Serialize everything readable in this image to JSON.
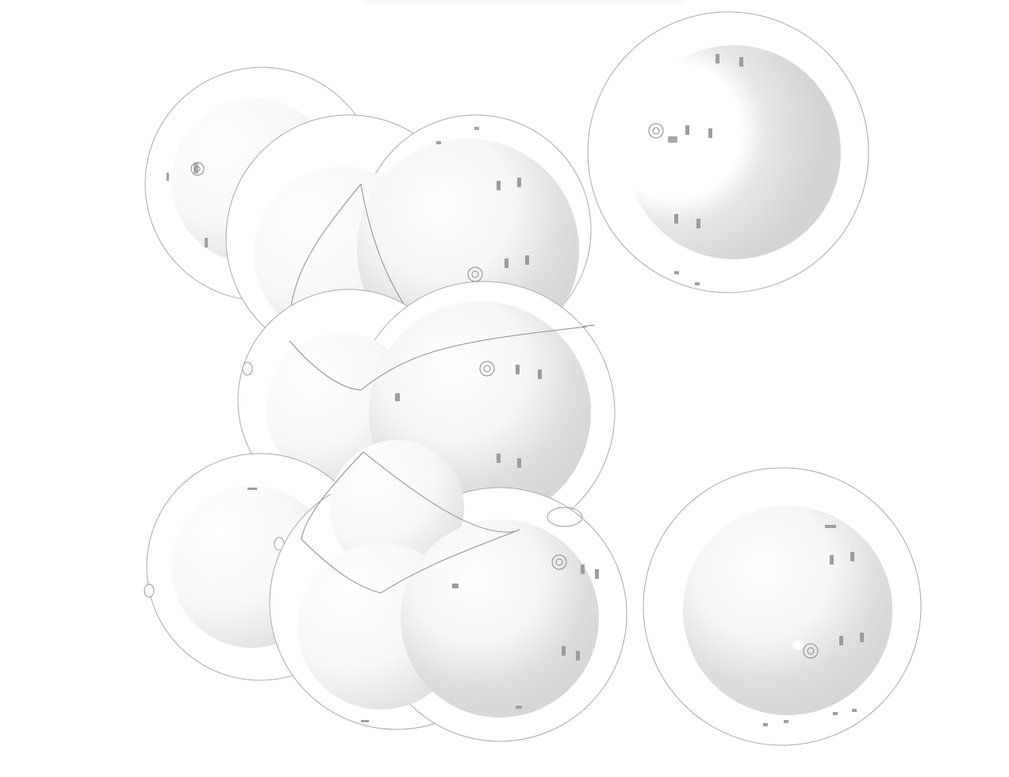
{
  "scene": {
    "description_visible_text": "",
    "colors": {
      "background": "#ffffff",
      "sphere_shadow": "#d6d6d6",
      "sphere_highlight": "#ffffff",
      "outline": "#9a9a9a",
      "mark": "#9c9c9c"
    },
    "shapes": [
      {
        "kind": "cell",
        "name": "cell-top-left-small"
      },
      {
        "kind": "cell",
        "name": "cell-top-center-pair"
      },
      {
        "kind": "cell",
        "name": "cell-middle-pair"
      },
      {
        "kind": "cell",
        "name": "cell-bottom-left"
      },
      {
        "kind": "cell",
        "name": "cell-bottom-center-pair"
      },
      {
        "kind": "cell",
        "name": "cell-top-right"
      },
      {
        "kind": "cell",
        "name": "cell-bottom-right"
      }
    ]
  }
}
